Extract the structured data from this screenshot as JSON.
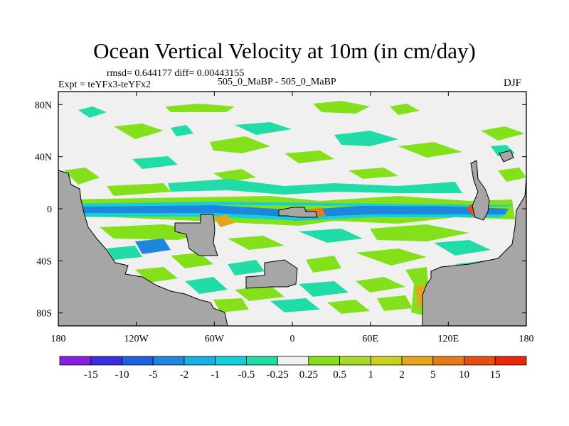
{
  "title": "Ocean Vertical Velocity at 10m (in cm/day)",
  "stats_line": "rmsd= 0.644177 diff= 0.00443155",
  "experiment": "Expt = teYFx3-teYFx2",
  "case_line": "505_0_MaBP - 505_0_MaBP",
  "season": "DJF",
  "chart_data": {
    "type": "heatmap",
    "title": "Ocean Vertical Velocity at 10m (in cm/day)",
    "variable": "ocean vertical velocity difference",
    "units": "cm/day",
    "x_axis": {
      "range": [
        -180,
        180
      ],
      "ticks": [
        {
          "value": -180,
          "label": "180"
        },
        {
          "value": -120,
          "label": "120W"
        },
        {
          "value": -60,
          "label": "60W"
        },
        {
          "value": 0,
          "label": "0"
        },
        {
          "value": 60,
          "label": "60E"
        },
        {
          "value": 120,
          "label": "120E"
        },
        {
          "value": 180,
          "label": "180"
        }
      ]
    },
    "y_axis": {
      "range": [
        -90,
        90
      ],
      "ticks": [
        {
          "value": 80,
          "label": "80N"
        },
        {
          "value": 40,
          "label": "40N"
        },
        {
          "value": 0,
          "label": "0"
        },
        {
          "value": -40,
          "label": "40S"
        },
        {
          "value": -80,
          "label": "80S"
        }
      ]
    },
    "colorbar": {
      "labels": [
        "-15",
        "-10",
        "-5",
        "-2",
        "-1",
        "-0.5",
        "-0.25",
        "0.25",
        "0.5",
        "1",
        "2",
        "5",
        "10",
        "15"
      ],
      "colors": [
        "#8a1fe0",
        "#3a2ee0",
        "#1f5fe0",
        "#1f86de",
        "#18b0e0",
        "#14cfd8",
        "#22dca8",
        "#f0f0f0",
        "#84e01a",
        "#a8d82a",
        "#cad022",
        "#e2a61e",
        "#e57a1a",
        "#e84e10",
        "#e8280a"
      ]
    },
    "land_color": "#a6a6a6",
    "ocean_background": "#f0f0f0"
  }
}
